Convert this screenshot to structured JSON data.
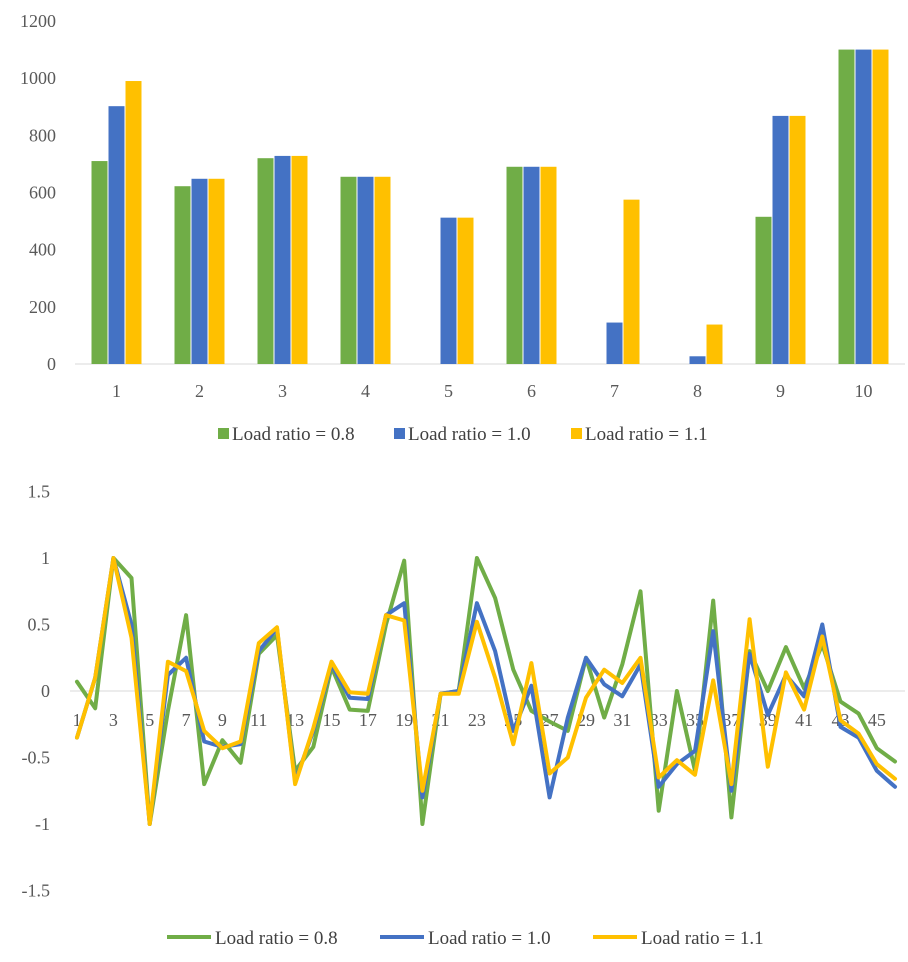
{
  "colors": {
    "series_08": "#70AD47",
    "series_10": "#4472C4",
    "series_11": "#FFC000",
    "axis": "#D9D9D9",
    "text": "#595959"
  },
  "chart_data": [
    {
      "type": "bar",
      "categories": [
        "1",
        "2",
        "3",
        "4",
        "5",
        "6",
        "7",
        "8",
        "9",
        "10"
      ],
      "ylim": [
        0,
        1200
      ],
      "yticks": [
        "0",
        "200",
        "400",
        "600",
        "800",
        "1000",
        "1200"
      ],
      "grid": false,
      "legend": "bottom",
      "series": [
        {
          "name": "Load ratio = 0.8",
          "values": [
            710,
            622,
            720,
            655,
            0,
            690,
            0,
            0,
            515,
            1100
          ]
        },
        {
          "name": "Load ratio = 1.0",
          "values": [
            902,
            648,
            728,
            655,
            512,
            690,
            145,
            27,
            868,
            1100
          ]
        },
        {
          "name": "Load ratio = 1.1",
          "values": [
            990,
            648,
            728,
            655,
            512,
            690,
            575,
            138,
            868,
            1100
          ]
        }
      ]
    },
    {
      "type": "line",
      "x": [
        1,
        2,
        3,
        4,
        5,
        6,
        7,
        8,
        9,
        10,
        11,
        12,
        13,
        14,
        15,
        16,
        17,
        18,
        19,
        20,
        21,
        22,
        23,
        24,
        25,
        26,
        27,
        28,
        29,
        30,
        31,
        32,
        33,
        34,
        35,
        36,
        37,
        38,
        39,
        40,
        41,
        42,
        43,
        44,
        45,
        46
      ],
      "xticks": [
        "1",
        "3",
        "5",
        "7",
        "9",
        "11",
        "13",
        "15",
        "17",
        "19",
        "21",
        "23",
        "25",
        "27",
        "29",
        "31",
        "33",
        "35",
        "37",
        "39",
        "41",
        "43",
        "45"
      ],
      "ylim": [
        -1.5,
        1.5
      ],
      "yticks": [
        "-1.5",
        "-1",
        "-0.5",
        "0",
        "0.5",
        "1",
        "1.5"
      ],
      "grid": false,
      "legend": "bottom",
      "series": [
        {
          "name": "Load ratio = 0.8",
          "values": [
            0.07,
            -0.13,
            1.0,
            0.85,
            -1.0,
            -0.15,
            0.57,
            -0.7,
            -0.37,
            -0.54,
            0.28,
            0.42,
            -0.6,
            -0.42,
            0.18,
            -0.14,
            -0.15,
            0.5,
            0.98,
            -1.0,
            -0.02,
            0.0,
            1.0,
            0.7,
            0.16,
            -0.15,
            -0.23,
            -0.3,
            0.25,
            -0.2,
            0.2,
            0.75,
            -0.9,
            0.0,
            -0.6,
            0.68,
            -0.95,
            0.3,
            0.0,
            0.33,
            0.02,
            0.35,
            -0.08,
            -0.17,
            -0.43,
            -0.53
          ]
        },
        {
          "name": "Load ratio = 1.0",
          "values": [
            -0.35,
            0.1,
            1.0,
            0.5,
            -1.0,
            0.12,
            0.25,
            -0.38,
            -0.42,
            -0.4,
            0.3,
            0.47,
            -0.68,
            -0.3,
            0.2,
            -0.05,
            -0.06,
            0.57,
            0.66,
            -0.8,
            -0.02,
            0.0,
            0.66,
            0.3,
            -0.3,
            0.04,
            -0.8,
            -0.2,
            0.25,
            0.05,
            -0.04,
            0.2,
            -0.72,
            -0.55,
            -0.45,
            0.45,
            -0.75,
            0.28,
            -0.18,
            0.12,
            -0.04,
            0.5,
            -0.27,
            -0.35,
            -0.6,
            -0.72
          ]
        },
        {
          "name": "Load ratio = 1.1",
          "values": [
            -0.35,
            0.1,
            1.0,
            0.4,
            -1.0,
            0.22,
            0.15,
            -0.3,
            -0.43,
            -0.38,
            0.36,
            0.48,
            -0.7,
            -0.28,
            0.22,
            -0.01,
            -0.02,
            0.57,
            0.53,
            -0.75,
            -0.02,
            -0.02,
            0.52,
            0.1,
            -0.4,
            0.21,
            -0.62,
            -0.5,
            -0.05,
            0.16,
            0.06,
            0.25,
            -0.65,
            -0.52,
            -0.63,
            0.08,
            -0.7,
            0.54,
            -0.57,
            0.14,
            -0.14,
            0.41,
            -0.22,
            -0.32,
            -0.55,
            -0.66
          ]
        }
      ]
    }
  ]
}
